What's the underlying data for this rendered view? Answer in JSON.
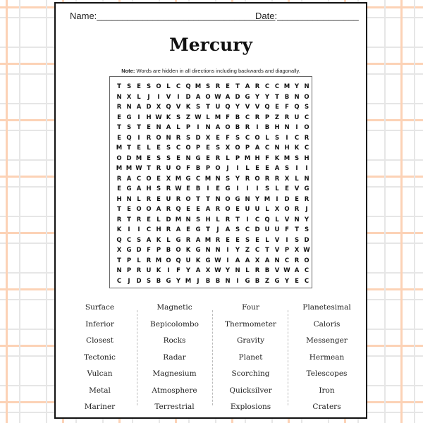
{
  "header": {
    "name_label": "Name:___________________________________",
    "date_label": "Date:________________"
  },
  "title": "Mercury",
  "note": {
    "bold": "Note:",
    "text": " Words are hidden in all directions including backwards and diagonally."
  },
  "grid": [
    "TSESOLCQMSRETARCCMYN",
    "NXLJIVIDAOWADGYYTBNO",
    "RNADXQVKSTUQYVVQEFQS",
    "EGIHWKSZWLMFBCRPZRUC",
    "TSTENALPINAOBRIBHNIO",
    "EQIRONRSDXEFSCOLSICR",
    "MTELESCOPESXOPACNHKC",
    "ODMESSENGERLPMHFKMSH",
    "MMWTRUOFBPOJILEEASII",
    "RACOEXMGCMNSYRORRXLN",
    "EGAHSRWEBIEGIIISLEVG",
    "HNLREUROTTNOGNYMIDER",
    "TEOOARQEEAROEUULXORJ",
    "RTRELDMNSHLRTICQLVNY",
    "KIICHRAEGTJASCDUUFTS",
    "QCSAKLGRAMREESELVISD",
    "XGDFPBOKGNNIYZCTVPXW",
    "TPLRMOQUKGWIAAXANCRO",
    "NPRUKIFYAXWYNLRBVWAC",
    "CJDSBGYMJBBNIGBZGYEC"
  ],
  "word_columns": [
    [
      "Surface",
      "Inferior",
      "Closest",
      "Tectonic",
      "Vulcan",
      "Metal",
      "Mariner"
    ],
    [
      "Magnetic",
      "Bepicolombo",
      "Rocks",
      "Radar",
      "Magnesium",
      "Atmosphere",
      "Terrestrial"
    ],
    [
      "Four",
      "Thermometer",
      "Gravity",
      "Planet",
      "Scorching",
      "Quicksilver",
      "Explosions"
    ],
    [
      "Planetesimal",
      "Caloris",
      "Messenger",
      "Hermean",
      "Telescopes",
      "Iron",
      "Craters"
    ]
  ],
  "colors": {
    "background_plaid_orange": "#fcd2b6",
    "background_plaid_gray": "#e6e6e6",
    "border": "#111111"
  }
}
